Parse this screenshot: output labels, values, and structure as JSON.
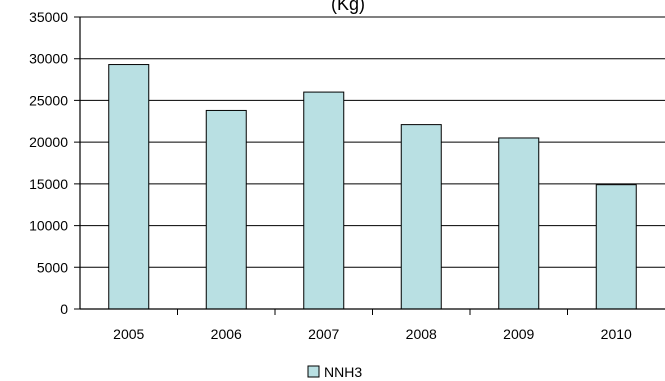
{
  "chart_data": {
    "type": "bar",
    "title": "(Kg)",
    "xlabel": "",
    "ylabel": "",
    "categories": [
      "2005",
      "2006",
      "2007",
      "2008",
      "2009",
      "2010"
    ],
    "series": [
      {
        "name": "NNH3",
        "values": [
          29300,
          23800,
          26000,
          22100,
          20500,
          14900
        ],
        "color": "#b9e0e3"
      }
    ],
    "ylim": [
      0,
      35000
    ],
    "yticks": [
      "0",
      "5000",
      "10000",
      "15000",
      "20000",
      "25000",
      "30000",
      "35000"
    ],
    "grid": true,
    "legend_position": "bottom"
  }
}
